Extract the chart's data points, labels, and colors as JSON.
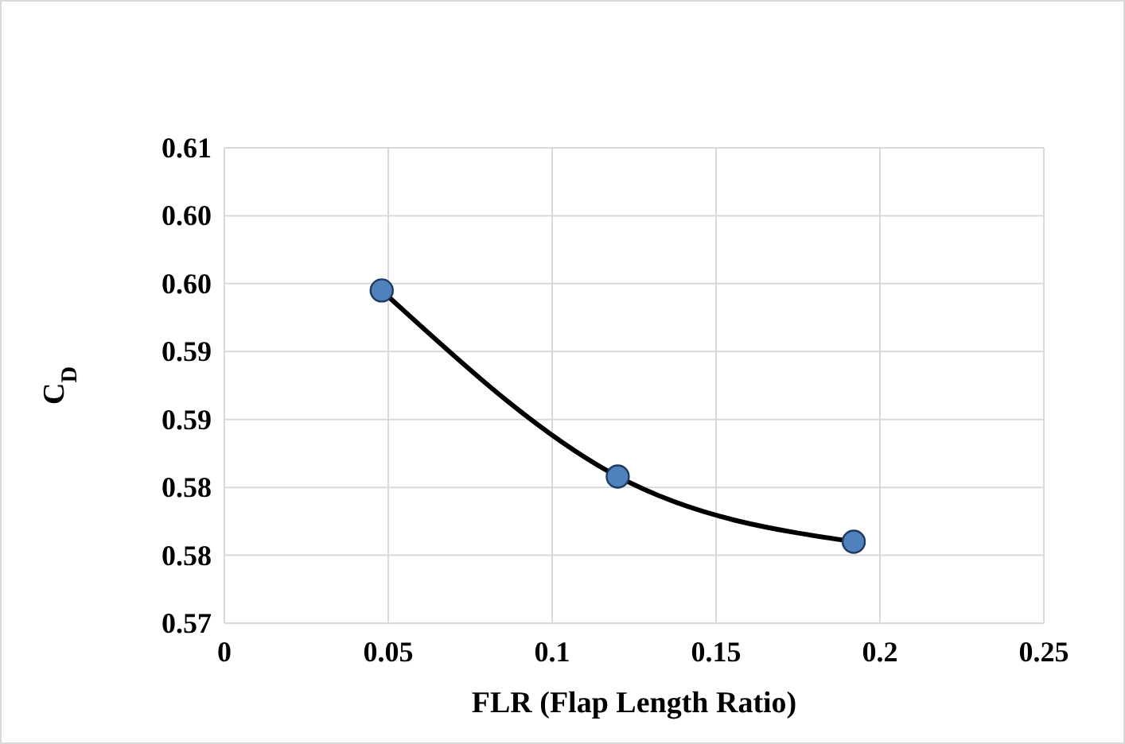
{
  "chart_data": {
    "type": "line",
    "xlabel": "FLR (Flap Length Ratio)",
    "ylabel": "C$_{D}$",
    "x": [
      0.048,
      0.12,
      0.192
    ],
    "series": [
      {
        "color": "#000000",
        "marker": "none",
        "values": [
          0.5945,
          0.5808,
          0.576
        ]
      },
      {
        "type": "scatter",
        "color": "#4f81bd",
        "values": [
          0.5945,
          0.5808,
          0.576
        ]
      }
    ],
    "xlim": [
      0,
      0.25
    ],
    "xticks": [
      0,
      0.05,
      0.1,
      0.15,
      0.2,
      0.25
    ],
    "ylim": [
      0.57,
      0.605
    ],
    "yticks": [
      {
        "value": 0.57,
        "label": "0.57"
      },
      {
        "value": 0.575,
        "label": "0.58"
      },
      {
        "value": 0.58,
        "label": "0.58"
      },
      {
        "value": 0.585,
        "label": "0.59"
      },
      {
        "value": 0.59,
        "label": "0.59"
      },
      {
        "value": 0.595,
        "label": "0.60"
      },
      {
        "value": 0.6,
        "label": "0.60"
      },
      {
        "value": 0.605,
        "label": "0.61"
      }
    ],
    "grid": true,
    "marker": "circle"
  }
}
